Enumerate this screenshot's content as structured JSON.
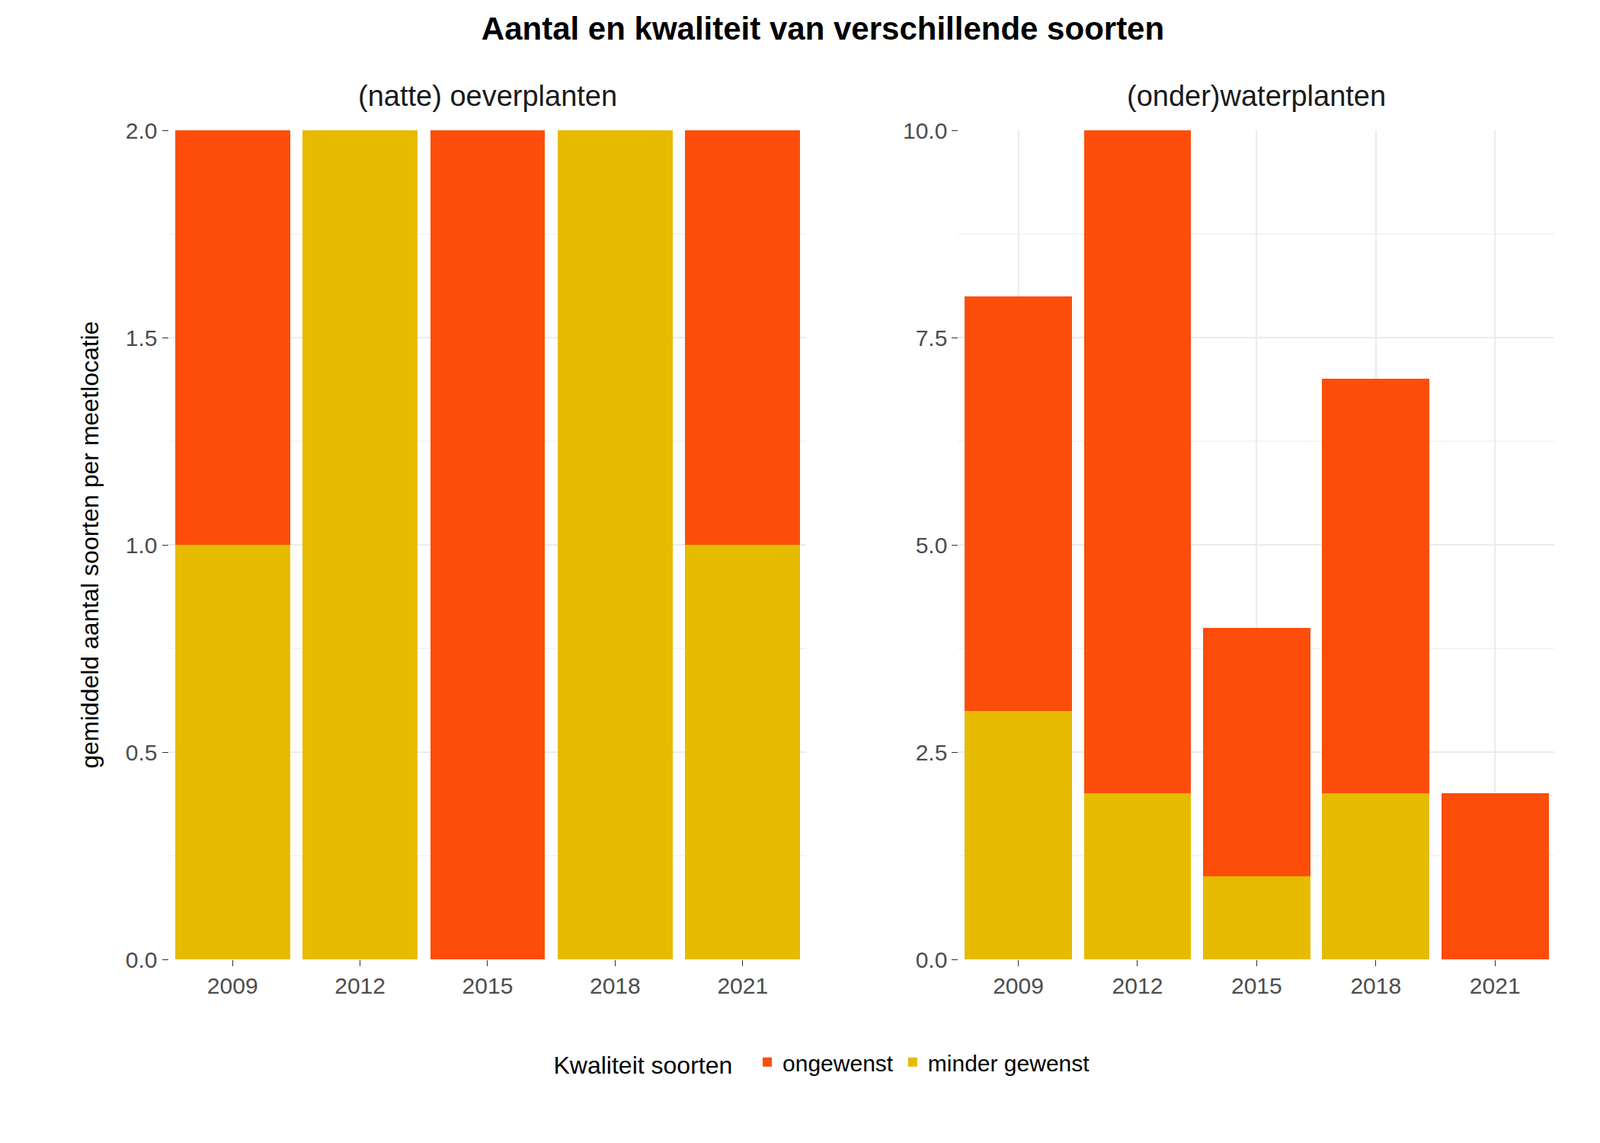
{
  "chart_data": {
    "type": "bar",
    "title": "Aantal en kwaliteit van verschillende soorten",
    "ylabel": "gemiddeld aantal soorten per meetlocatie",
    "legend_title": "Kwaliteit soorten",
    "legend": "bottom",
    "stacked": true,
    "grid": true,
    "panels": [
      {
        "subtitle": "(natte) oeverplanten",
        "categories": [
          "2009",
          "2012",
          "2015",
          "2018",
          "2021"
        ],
        "ylim": [
          0,
          2
        ],
        "yticks": [
          {
            "value": 0,
            "label": "0.0"
          },
          0.5,
          {
            "value": 1,
            "label": "1.0"
          },
          1.5,
          {
            "value": 2,
            "label": "2.0"
          }
        ],
        "series": [
          {
            "name": "ongewenst",
            "color": "#FC4E0A",
            "values": [
              1,
              0,
              2,
              0,
              1
            ]
          },
          {
            "name": "minder gewenst",
            "color": "#E6BB00",
            "values": [
              1,
              2,
              0,
              2,
              1
            ]
          }
        ]
      },
      {
        "subtitle": "(onder)waterplanten",
        "categories": [
          "2009",
          "2012",
          "2015",
          "2018",
          "2021"
        ],
        "ylim": [
          0,
          10
        ],
        "yticks": [
          {
            "value": 0,
            "label": "0.0"
          },
          2.5,
          {
            "value": 5,
            "label": "5.0"
          },
          7.5,
          {
            "value": 10,
            "label": "10.0"
          }
        ],
        "series": [
          {
            "name": "ongewenst",
            "color": "#FC4E0A",
            "values": [
              5,
              8,
              3,
              5,
              2
            ]
          },
          {
            "name": "minder gewenst",
            "color": "#E6BB00",
            "values": [
              3,
              2,
              1,
              2,
              0
            ]
          }
        ]
      }
    ]
  }
}
